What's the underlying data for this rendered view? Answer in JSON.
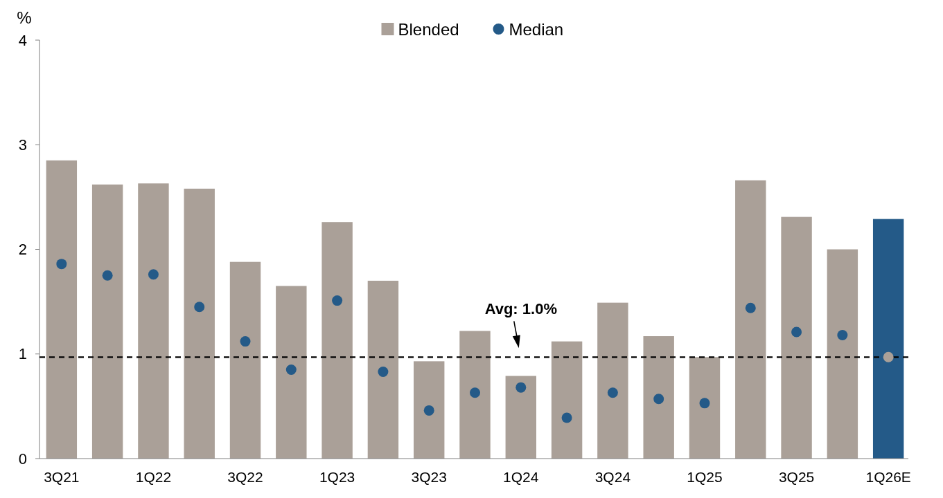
{
  "chart_data": {
    "type": "bar",
    "ylabel": "%",
    "categories": [
      "3Q21",
      null,
      "1Q22",
      null,
      "3Q22",
      null,
      "1Q23",
      null,
      "3Q23",
      null,
      "1Q24",
      null,
      "3Q24",
      null,
      "1Q25",
      null,
      "3Q25",
      null,
      "1Q26E"
    ],
    "series": [
      {
        "name": "Blended",
        "color": "#aaa098",
        "colors": [
          "#aaa098",
          "#aaa098",
          "#aaa098",
          "#aaa098",
          "#aaa098",
          "#aaa098",
          "#aaa098",
          "#aaa098",
          "#aaa098",
          "#aaa098",
          "#aaa098",
          "#aaa098",
          "#aaa098",
          "#aaa098",
          "#aaa098",
          "#aaa098",
          "#aaa098",
          "#aaa098",
          "#245a88"
        ],
        "values": [
          2.85,
          2.62,
          2.63,
          2.58,
          1.88,
          1.65,
          2.26,
          1.7,
          0.93,
          1.22,
          0.79,
          1.12,
          1.49,
          1.17,
          0.97,
          2.66,
          2.31,
          2.0,
          2.29
        ]
      },
      {
        "name": "Median",
        "type": "scatter",
        "marker": "circle",
        "color": "#245a88",
        "colors": [
          "#245a88",
          "#245a88",
          "#245a88",
          "#245a88",
          "#245a88",
          "#245a88",
          "#245a88",
          "#245a88",
          "#245a88",
          "#245a88",
          "#245a88",
          "#245a88",
          "#245a88",
          "#245a88",
          "#245a88",
          "#245a88",
          "#245a88",
          "#245a88",
          "#aaa098"
        ],
        "values": [
          1.86,
          1.75,
          1.76,
          1.45,
          1.12,
          0.85,
          1.51,
          0.83,
          0.46,
          0.63,
          0.68,
          0.39,
          0.63,
          0.57,
          0.53,
          1.44,
          1.21,
          1.18,
          0.97
        ]
      }
    ],
    "ylim": [
      0,
      4
    ],
    "yticks": [
      0,
      1,
      2,
      3,
      4
    ],
    "grid": false,
    "legend": "top",
    "ref_lines": [
      {
        "axis": "y",
        "value": 0.97,
        "label": "Avg: 1.0%",
        "color": "#000000",
        "line_style": "dashed"
      }
    ]
  }
}
